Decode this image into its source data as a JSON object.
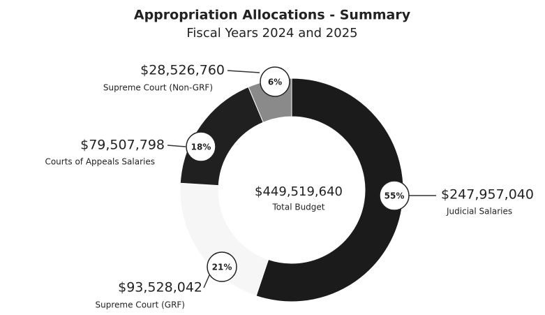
{
  "chart_data": {
    "type": "donut",
    "title": "Appropriation Allocations - Summary",
    "subtitle": "Fiscal Years 2024 and 2025",
    "center_label": "$449,519,640",
    "center_caption": "Total Budget",
    "categories": [
      "Judicial Salaries",
      "Supreme Court (GRF)",
      "Courts of Appeals Salaries",
      "Supreme Court (Non-GRF)"
    ],
    "values": [
      247957040,
      93528042,
      79507798,
      28526760
    ],
    "value_labels": [
      "$247,957,040",
      "$93,528,042",
      "$79,507,798",
      "$28,526,760"
    ],
    "percents": [
      55,
      21,
      18,
      6
    ],
    "percent_labels": [
      "55%",
      "21%",
      "18%",
      "6%"
    ],
    "colors": [
      "#1b1b1b",
      "#f6f6f6",
      "#202020",
      "#8a8a8a"
    ]
  }
}
